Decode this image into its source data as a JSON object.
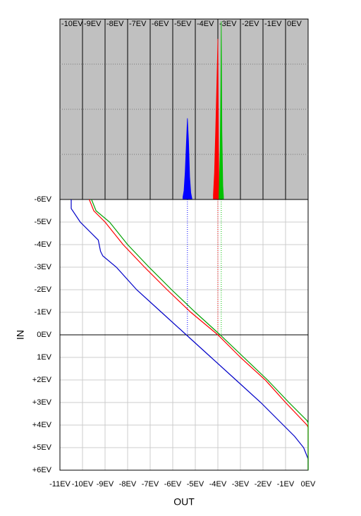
{
  "chart_data": [
    {
      "type": "histogram",
      "categories": [
        "-10EV",
        "-9EV",
        "-8EV",
        "-7EV",
        "-6EV",
        "-5EV",
        "-4EV",
        "-3EV",
        "-2EV",
        "-1EV",
        "0EV"
      ],
      "xlim": [
        -11,
        0
      ],
      "ylim": [
        0,
        4
      ],
      "yticks": [
        1,
        2,
        3
      ],
      "grid": true,
      "background": "#c0c0c0",
      "series": [
        {
          "color": "#0000ff",
          "x": [
            -5.55,
            -5.5,
            -5.45,
            -5.4,
            -5.35,
            -5.3,
            -5.25,
            -5.2,
            -5.15
          ],
          "values": [
            0.05,
            0.2,
            0.6,
            1.2,
            1.8,
            1.3,
            0.5,
            0.15,
            0.02
          ]
        },
        {
          "color": "#ff0000",
          "x": [
            -4.2,
            -4.15,
            -4.1,
            -4.05,
            -4.0,
            -3.97,
            -3.95
          ],
          "values": [
            0.1,
            0.6,
            1.5,
            2.5,
            3.56,
            1.2,
            0.2
          ]
        },
        {
          "color": "#00c000",
          "x": [
            -3.95,
            -3.9,
            -3.87,
            -3.85,
            -3.82,
            -3.78,
            -3.75
          ],
          "values": [
            0.1,
            1.1,
            2.5,
            3.95,
            1.5,
            0.3,
            0.05
          ]
        }
      ]
    },
    {
      "type": "line",
      "xlabel": "OUT",
      "ylabel": "IN",
      "xlim": [
        -11,
        0
      ],
      "ylim": [
        -6,
        6
      ],
      "y_inverted": true,
      "grid": true,
      "xticks": [
        {
          "value": -11,
          "label": "-11EV"
        },
        {
          "value": -10,
          "label": "-10EV"
        },
        {
          "value": -9,
          "label": "-9EV"
        },
        {
          "value": -8,
          "label": "-8EV"
        },
        {
          "value": -7,
          "label": "-7EV"
        },
        {
          "value": -6,
          "label": "-6EV"
        },
        {
          "value": -5,
          "label": "-5EV"
        },
        {
          "value": -4,
          "label": "-4EV"
        },
        {
          "value": -3,
          "label": "-3EV"
        },
        {
          "value": -2,
          "label": "-2EV"
        },
        {
          "value": -1,
          "label": "-1EV"
        },
        {
          "value": 0,
          "label": "0EV"
        }
      ],
      "yticks": [
        {
          "value": -6,
          "label": "-6EV"
        },
        {
          "value": -5,
          "label": "-5EV"
        },
        {
          "value": -4,
          "label": "-4EV"
        },
        {
          "value": -3,
          "label": "-3EV"
        },
        {
          "value": -2,
          "label": "-2EV"
        },
        {
          "value": -1,
          "label": "-1EV"
        },
        {
          "value": 0,
          "label": "0EV"
        },
        {
          "value": 1,
          "label": "1EV"
        },
        {
          "value": 2,
          "label": "+2EV"
        },
        {
          "value": 3,
          "label": "+3EV"
        },
        {
          "value": 4,
          "label": "+4EV"
        },
        {
          "value": 5,
          "label": "+5EV"
        },
        {
          "value": 6,
          "label": "+6EV"
        }
      ],
      "reference_y": 0,
      "series": [
        {
          "color": "#0000c8",
          "x": [
            -10.5,
            -10.5,
            -10.1,
            -9.3,
            -9.2,
            -9.1,
            -8.5,
            -7.6,
            -6.5,
            -5.4,
            -4.3,
            -3.2,
            -2.1,
            -1.1,
            -0.6,
            -0.2,
            0,
            0
          ],
          "values": [
            -6,
            -5.6,
            -5,
            -4.2,
            -3.7,
            -3.5,
            -3,
            -2,
            -1,
            0,
            1,
            2,
            3,
            4,
            4.5,
            5,
            5.5,
            6
          ]
        },
        {
          "color": "#ff0000",
          "x": [
            -9.7,
            -9.5,
            -9.0,
            -8.2,
            -7.25,
            -6.25,
            -5.2,
            -4.0,
            -3.0,
            -1.9,
            -1.0,
            -0.05,
            0,
            0
          ],
          "values": [
            -6,
            -5.5,
            -5,
            -4,
            -3,
            -2,
            -1,
            0,
            1,
            2,
            3,
            4,
            4.1,
            6
          ]
        },
        {
          "color": "#00a000",
          "x": [
            -9.6,
            -9.4,
            -8.8,
            -8.0,
            -7.05,
            -6.05,
            -5.0,
            -3.9,
            -2.85,
            -1.8,
            -0.85,
            -0.05,
            0,
            0
          ],
          "values": [
            -6,
            -5.5,
            -5,
            -4,
            -3,
            -2,
            -1,
            0,
            1,
            2,
            3,
            3.8,
            3.9,
            6
          ]
        }
      ]
    }
  ]
}
